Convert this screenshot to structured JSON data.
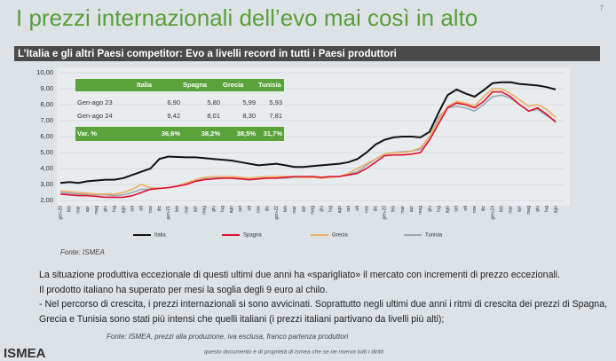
{
  "slide": {
    "title": "I prezzi internazionali dell’evo mai così in alto",
    "page": "7",
    "banner": "L’Italia e gli altri Paesi competitor: Evo a livelli record in tutti i Paesi produttori",
    "source": "Fonte: ISMEA",
    "body": [
      "La situazione produttiva eccezionale di questi ultimi due anni ha «sparigliato» il mercato con incrementi di prezzo eccezionali.",
      "Il prodotto italiano ha superato per mesi la soglia degli 9 euro al chilo.",
      "- Nel percorso di crescita, i prezzi internazionali si sono avvicinati. Soprattutto negli ultimi due anni i ritmi di crescita dei prezzi di Spagna, Grecia e Tunisia sono stati più intensi che quelli italiani (i prezzi italiani partivano da livelli più alti);"
    ],
    "footnote": "Fonte: ISMEA, prezzi alla produzione, iva esclusa, franco partenza produttori",
    "copyright": "questo documento è di proprietà di Ismea che se ne riserva tutti i diritti",
    "logo": "ISMEA"
  },
  "table": {
    "columns": [
      "Italia",
      "Spagna",
      "Grecia",
      "Tunisia"
    ],
    "rows": [
      {
        "label": "Gen-ago 23",
        "cells": [
          "6,90",
          "5,80",
          "5,99",
          "5,93"
        ]
      },
      {
        "label": "Gen-ago 24",
        "cells": [
          "9,42",
          "8,01",
          "8,30",
          "7,81"
        ]
      },
      {
        "label": "Var. %",
        "cells": [
          "36,6%",
          "38,2%",
          "38,5%",
          "31,7%"
        ]
      }
    ]
  },
  "chart_data": {
    "type": "line",
    "grid": true,
    "legend": "bottom",
    "categories": [
      "gen-20",
      "feb",
      "mar",
      "apr",
      "mag",
      "giu",
      "lug",
      "ago",
      "set",
      "ott",
      "nov",
      "dic",
      "gen-21",
      "feb",
      "mar",
      "apr",
      "mag",
      "giu",
      "lug",
      "ago",
      "set",
      "ott",
      "nov",
      "dic",
      "gen-22",
      "feb",
      "mar",
      "apr",
      "mag",
      "giu",
      "lug",
      "ago",
      "set",
      "ott",
      "nov",
      "dic",
      "gen-23",
      "feb",
      "mar",
      "apr",
      "mag",
      "giu",
      "lug",
      "ago",
      "set",
      "ott",
      "nov",
      "dic",
      "gen-24",
      "feb",
      "mar",
      "apr",
      "mag",
      "giu",
      "lug",
      "ago"
    ],
    "ylim": [
      2,
      10
    ],
    "yticks": [
      {
        "value": 2,
        "label": "2,00"
      },
      {
        "value": 3,
        "label": "3,00"
      },
      {
        "value": 4,
        "label": "4,00"
      },
      {
        "value": 5,
        "label": "5,00"
      },
      {
        "value": 6,
        "label": "6,00"
      },
      {
        "value": 7,
        "label": "7,00"
      },
      {
        "value": 8,
        "label": "8,00"
      },
      {
        "value": 9,
        "label": "9,00"
      },
      {
        "value": 10,
        "label": "10,00"
      }
    ],
    "series": [
      {
        "name": "Italia",
        "color": "#111111",
        "values": [
          3.1,
          3.15,
          3.1,
          3.2,
          3.25,
          3.3,
          3.3,
          3.4,
          3.6,
          3.8,
          4.0,
          4.6,
          4.75,
          4.72,
          4.7,
          4.7,
          4.65,
          4.6,
          4.55,
          4.5,
          4.4,
          4.3,
          4.2,
          4.25,
          4.3,
          4.2,
          4.1,
          4.1,
          4.15,
          4.2,
          4.25,
          4.3,
          4.4,
          4.6,
          5.0,
          5.5,
          5.8,
          5.95,
          6.0,
          6.0,
          5.95,
          6.3,
          7.5,
          8.6,
          8.95,
          8.7,
          8.5,
          8.9,
          9.35,
          9.4,
          9.4,
          9.3,
          9.25,
          9.2,
          9.1,
          8.95
        ]
      },
      {
        "name": "Spagna",
        "color": "#e0102f",
        "values": [
          2.4,
          2.35,
          2.3,
          2.3,
          2.25,
          2.2,
          2.2,
          2.2,
          2.3,
          2.5,
          2.7,
          2.75,
          2.8,
          2.9,
          3.0,
          3.2,
          3.3,
          3.35,
          3.4,
          3.4,
          3.35,
          3.3,
          3.35,
          3.4,
          3.4,
          3.45,
          3.5,
          3.5,
          3.5,
          3.45,
          3.5,
          3.5,
          3.6,
          3.7,
          4.0,
          4.4,
          4.8,
          4.85,
          4.85,
          4.9,
          5.0,
          5.8,
          6.8,
          7.8,
          8.1,
          8.0,
          7.8,
          8.2,
          8.8,
          8.8,
          8.5,
          8.0,
          7.6,
          7.8,
          7.4,
          6.9
        ]
      },
      {
        "name": "Grecia",
        "color": "#eeae5c",
        "values": [
          2.6,
          2.55,
          2.5,
          2.45,
          2.4,
          2.4,
          2.4,
          2.5,
          2.7,
          3.0,
          2.8,
          2.75,
          2.8,
          2.9,
          3.1,
          3.3,
          3.45,
          3.5,
          3.5,
          3.5,
          3.45,
          3.4,
          3.45,
          3.5,
          3.5,
          3.5,
          3.5,
          3.45,
          3.45,
          3.4,
          3.45,
          3.5,
          3.7,
          4.0,
          4.3,
          4.6,
          4.9,
          5.0,
          5.0,
          5.1,
          5.3,
          6.0,
          7.0,
          7.9,
          8.2,
          8.1,
          7.9,
          8.5,
          9.0,
          9.0,
          8.7,
          8.3,
          7.9,
          8.0,
          7.7,
          7.2
        ]
      },
      {
        "name": "Tunisia",
        "color": "#9aa8b8",
        "values": [
          2.5,
          2.45,
          2.4,
          2.4,
          2.35,
          2.35,
          2.3,
          2.35,
          2.5,
          2.7,
          2.7,
          2.75,
          2.8,
          2.9,
          3.1,
          3.25,
          3.35,
          3.4,
          3.4,
          3.4,
          3.35,
          3.3,
          3.35,
          3.4,
          3.4,
          3.4,
          3.45,
          3.45,
          3.45,
          3.4,
          3.45,
          3.5,
          3.65,
          3.8,
          4.2,
          4.6,
          4.9,
          5.0,
          5.05,
          5.1,
          5.2,
          6.0,
          7.2,
          7.8,
          7.9,
          7.8,
          7.6,
          8.0,
          8.5,
          8.6,
          8.4,
          8.0,
          7.6,
          7.7,
          7.3,
          7.0
        ]
      }
    ]
  }
}
